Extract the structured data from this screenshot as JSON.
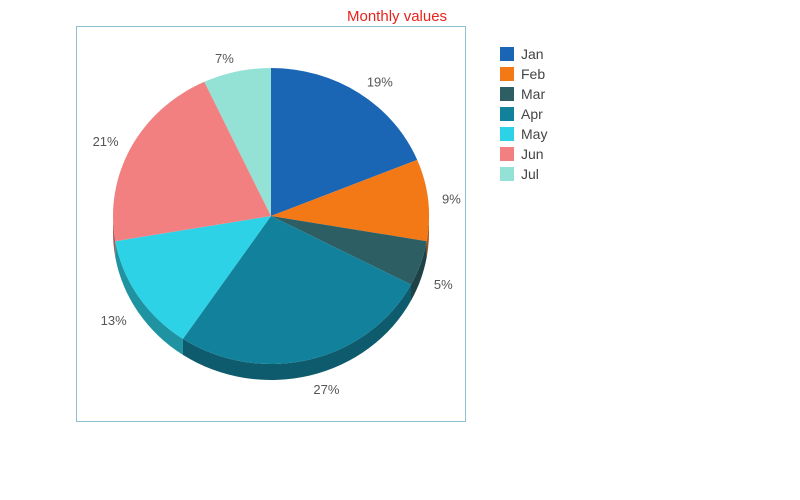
{
  "chart_data": {
    "type": "pie",
    "title": "Monthly values",
    "title_color": "#e8231b",
    "three_d": true,
    "legend_position": "right",
    "slices": [
      {
        "label": "Jan",
        "value": 19,
        "value_label": "19%",
        "color": "#1a66b4"
      },
      {
        "label": "Feb",
        "value": 9,
        "value_label": "9%",
        "color": "#f37816"
      },
      {
        "label": "Mar",
        "value": 5,
        "value_label": "5%",
        "color": "#2d5e64"
      },
      {
        "label": "Apr",
        "value": 27,
        "value_label": "27%",
        "color": "#12829c"
      },
      {
        "label": "May",
        "value": 13,
        "value_label": "13%",
        "color": "#2dd2e6"
      },
      {
        "label": "Jun",
        "value": 21,
        "value_label": "21%",
        "color": "#f38080"
      },
      {
        "label": "Jul",
        "value": 7,
        "value_label": "7%",
        "color": "#94e2d6"
      }
    ]
  }
}
